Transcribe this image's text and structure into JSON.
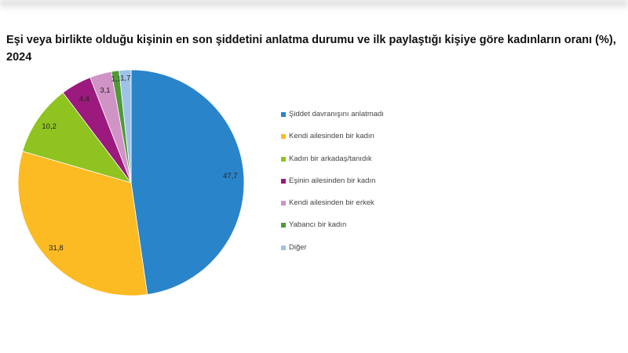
{
  "chart_data": {
    "type": "pie",
    "title": "Eşi veya birlikte olduğu kişinin en son şiddetini anlatma durumu ve ilk paylaştığı kişiye göre kadınların oranı (%), 2024",
    "categories": [
      "Şiddet davranışını anlatmadı",
      "Kendi ailesinden bir kadın",
      "Kadın bir arkadaş/tanıdık",
      "Eşinin ailesinden bir kadın",
      "Kendi ailesinden bir erkek",
      "Yabancı bir kadın",
      "Diğer"
    ],
    "values": [
      47.7,
      31.8,
      10.2,
      4.4,
      3.1,
      1.1,
      1.7
    ],
    "labels": [
      "47,7",
      "31,8",
      "10,2",
      "4,4",
      "3,1",
      "1,1",
      "1,7"
    ],
    "colors": [
      "#2a84c9",
      "#fcba23",
      "#8fc31f",
      "#9c1a7d",
      "#d093c6",
      "#4f9a38",
      "#9ec3ea"
    ],
    "legend_position": "right"
  }
}
